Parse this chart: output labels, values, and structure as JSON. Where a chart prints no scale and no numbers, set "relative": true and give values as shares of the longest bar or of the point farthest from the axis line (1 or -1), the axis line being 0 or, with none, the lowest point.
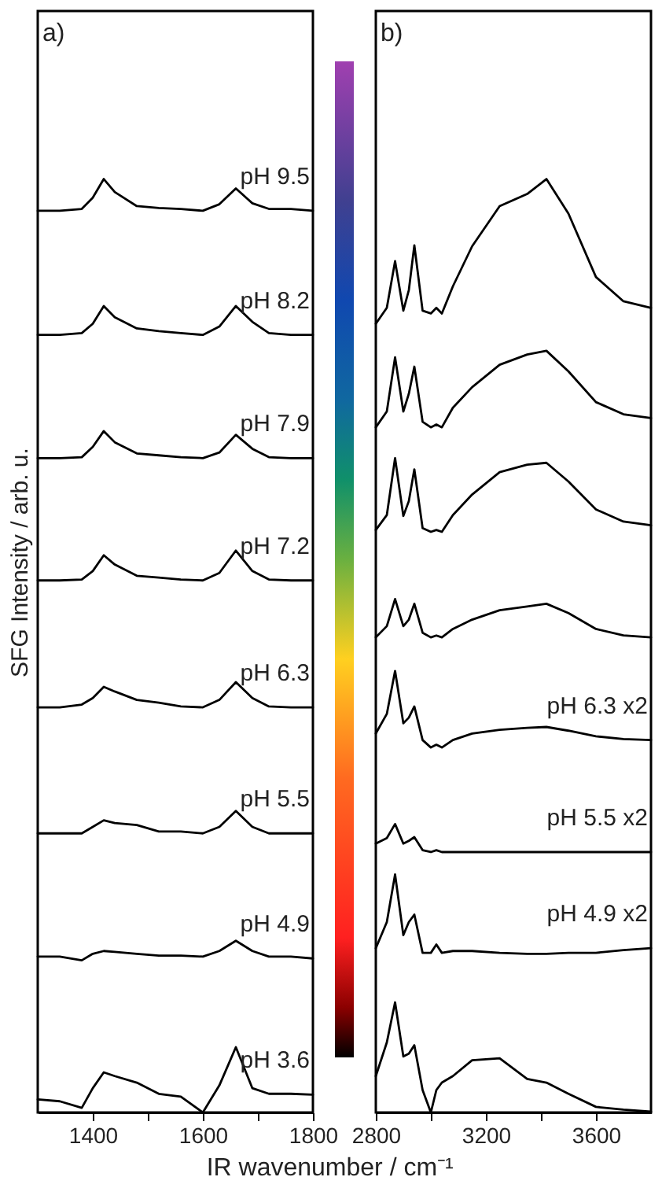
{
  "chart_data": [
    {
      "type": "line",
      "relative": true,
      "title": "a)",
      "xlabel": "IR wavenumber / cm⁻¹",
      "ylabel": "SFG Intensity / arb. u.",
      "tick_labels": "x",
      "xlim": [
        1300,
        1800
      ],
      "xticks": [
        1400,
        {
          "value": 1500,
          "label": null
        },
        1600,
        {
          "value": 1700,
          "label": null
        },
        1800
      ],
      "x": [
        1300,
        1340,
        1380,
        1400,
        1420,
        1440,
        1480,
        1520,
        1560,
        1600,
        1630,
        1660,
        1690,
        1720,
        1760,
        1800
      ],
      "series": [
        {
          "name": "pH 9.5",
          "color": "#000000",
          "values": [
            0.966,
            0.966,
            0.968,
            0.98,
            1.0,
            0.986,
            0.971,
            0.969,
            0.968,
            0.966,
            0.973,
            0.99,
            0.974,
            0.968,
            0.968,
            0.966
          ]
        },
        {
          "name": "pH 8.2",
          "color": "#000000",
          "values": [
            0.833,
            0.833,
            0.835,
            0.845,
            0.864,
            0.852,
            0.84,
            0.837,
            0.835,
            0.833,
            0.842,
            0.864,
            0.847,
            0.835,
            0.833,
            0.833
          ]
        },
        {
          "name": "pH 7.9",
          "color": "#000000",
          "values": [
            0.701,
            0.701,
            0.702,
            0.713,
            0.73,
            0.718,
            0.706,
            0.704,
            0.702,
            0.701,
            0.707,
            0.726,
            0.711,
            0.702,
            0.701,
            0.701
          ]
        },
        {
          "name": "pH 7.2",
          "color": "#000000",
          "values": [
            0.57,
            0.57,
            0.571,
            0.58,
            0.597,
            0.587,
            0.575,
            0.573,
            0.571,
            0.57,
            0.578,
            0.602,
            0.58,
            0.571,
            0.57,
            0.57
          ]
        },
        {
          "name": "pH 6.3",
          "color": "#000000",
          "values": [
            0.434,
            0.434,
            0.437,
            0.444,
            0.456,
            0.451,
            0.442,
            0.439,
            0.435,
            0.434,
            0.442,
            0.461,
            0.444,
            0.435,
            0.434,
            0.434
          ]
        },
        {
          "name": "pH 5.5",
          "color": "#000000",
          "values": [
            0.299,
            0.299,
            0.299,
            0.306,
            0.313,
            0.31,
            0.308,
            0.301,
            0.301,
            0.299,
            0.306,
            0.323,
            0.306,
            0.299,
            0.299,
            0.299
          ]
        },
        {
          "name": "pH 4.9",
          "color": "#000000",
          "values": [
            0.167,
            0.167,
            0.163,
            0.17,
            0.173,
            0.172,
            0.17,
            0.168,
            0.168,
            0.167,
            0.173,
            0.184,
            0.173,
            0.167,
            0.167,
            0.165
          ]
        },
        {
          "name": "pH 3.6",
          "color": "#000000",
          "values": [
            0.014,
            0.012,
            0.005,
            0.026,
            0.043,
            0.039,
            0.032,
            0.02,
            0.017,
            0,
            0.029,
            0.07,
            0.026,
            0.02,
            0.02,
            0.019
          ]
        }
      ]
    },
    {
      "type": "line",
      "relative": true,
      "title": "b)",
      "tick_labels": "x",
      "xlim": [
        2800,
        3800
      ],
      "xticks": [
        2800,
        {
          "value": 3000,
          "label": null
        },
        3200,
        {
          "value": 3400,
          "label": null
        },
        3600
      ],
      "x": [
        2800,
        2840,
        2870,
        2900,
        2920,
        2940,
        2970,
        3000,
        3020,
        3040,
        3080,
        3150,
        3250,
        3350,
        3420,
        3500,
        3600,
        3700,
        3800
      ],
      "series": [
        {
          "color": "#000000",
          "values": [
            0.845,
            0.862,
            0.912,
            0.859,
            0.881,
            0.929,
            0.859,
            0.856,
            0.862,
            0.856,
            0.885,
            0.928,
            0.971,
            0.984,
            1.0,
            0.963,
            0.895,
            0.869,
            0.862
          ]
        },
        {
          "color": "#000000",
          "values": [
            0.734,
            0.751,
            0.809,
            0.751,
            0.77,
            0.799,
            0.74,
            0.734,
            0.737,
            0.734,
            0.755,
            0.777,
            0.801,
            0.812,
            0.816,
            0.794,
            0.761,
            0.748,
            0.744
          ]
        },
        {
          "color": "#000000",
          "values": [
            0.624,
            0.64,
            0.701,
            0.639,
            0.655,
            0.689,
            0.626,
            0.622,
            0.624,
            0.622,
            0.64,
            0.662,
            0.686,
            0.694,
            0.696,
            0.676,
            0.646,
            0.633,
            0.629
          ]
        },
        {
          "color": "#000000",
          "values": [
            0.509,
            0.521,
            0.55,
            0.521,
            0.528,
            0.545,
            0.514,
            0.509,
            0.511,
            0.509,
            0.518,
            0.528,
            0.538,
            0.542,
            0.545,
            0.535,
            0.518,
            0.511,
            0.509
          ]
        },
        {
          "name": "pH 6.3 x2",
          "color": "#000000",
          "values": [
            0.406,
            0.427,
            0.473,
            0.417,
            0.423,
            0.435,
            0.399,
            0.391,
            0.394,
            0.391,
            0.399,
            0.406,
            0.41,
            0.412,
            0.413,
            0.409,
            0.403,
            0.4,
            0.399
          ]
        },
        {
          "name": "pH 5.5 x2",
          "color": "#000000",
          "values": [
            0.288,
            0.294,
            0.309,
            0.288,
            0.291,
            0.295,
            0.281,
            0.279,
            0.281,
            0.279,
            0.279,
            0.279,
            0.279,
            0.279,
            0.279,
            0.279,
            0.279,
            0.279,
            0.279
          ]
        },
        {
          "name": "pH 4.9 x2",
          "color": "#000000",
          "values": [
            0.176,
            0.204,
            0.255,
            0.19,
            0.204,
            0.212,
            0.171,
            0.171,
            0.18,
            0.171,
            0.173,
            0.173,
            0.171,
            0.17,
            0.17,
            0.171,
            0.171,
            0.174,
            0.176
          ]
        },
        {
          "color": "#000000",
          "values": [
            0.039,
            0.075,
            0.118,
            0.06,
            0.063,
            0.072,
            0.024,
            0,
            0.024,
            0.032,
            0.039,
            0.056,
            0.058,
            0.036,
            0.032,
            0.02,
            0.006,
            0.003,
            0.001
          ]
        }
      ]
    }
  ]
}
